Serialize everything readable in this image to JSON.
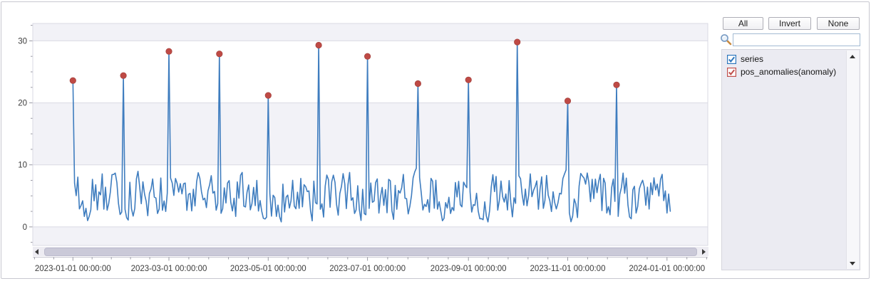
{
  "panel": {
    "buttons": {
      "all": "All",
      "invert": "Invert",
      "none": "None"
    },
    "search": {
      "value": "",
      "placeholder": ""
    },
    "legend_items": [
      {
        "label": "series",
        "color": "#2e77bd",
        "checked": true
      },
      {
        "label": "pos_anomalies(anomaly)",
        "color": "#c0504d",
        "checked": true
      }
    ]
  },
  "chart_data": {
    "type": "line",
    "title": "",
    "xlabel": "",
    "ylabel": "",
    "start_date": "2023-01-01",
    "num_points": 368,
    "ylim": [
      -3,
      32.8
    ],
    "y_ticks": [
      0,
      10,
      20,
      30
    ],
    "y_minor_step": 2.5,
    "x_ticks": [
      {
        "label": "2023-01-01 00:00:00",
        "day": 0
      },
      {
        "label": "2023-03-01 00:00:00",
        "day": 59
      },
      {
        "label": "2023-05-01 00:00:00",
        "day": 120
      },
      {
        "label": "2023-07-01 00:00:00",
        "day": 181
      },
      {
        "label": "2023-09-01 00:00:00",
        "day": 243
      },
      {
        "label": "2023-11-01 00:00:00",
        "day": 304
      },
      {
        "label": "2024-01-01 00:00:00",
        "day": 365
      }
    ],
    "grid": "horizontal-major-only",
    "grid_color": "#d9d9e3",
    "band_color": "#f2f2f7",
    "bands": [
      [
        32.8,
        30
      ],
      [
        20,
        10
      ],
      [
        0,
        -3
      ]
    ],
    "tick_label_color": "#3c3c3c",
    "series": [
      {
        "name": "series",
        "color": "#3f7dbf",
        "baseline": {
          "min": 0.3,
          "max": 9.7,
          "seed": 77,
          "smooth": 0.25
        }
      },
      {
        "name": "pos_anomalies(anomaly)",
        "color": "#bf4a45",
        "marker": "circle"
      }
    ],
    "anomalies": [
      {
        "date": "2023-01-01",
        "value": 23.6
      },
      {
        "date": "2023-02-01",
        "value": 24.4
      },
      {
        "date": "2023-03-01",
        "value": 28.3
      },
      {
        "date": "2023-04-01",
        "value": 27.9
      },
      {
        "date": "2023-05-01",
        "value": 21.2
      },
      {
        "date": "2023-06-01",
        "value": 29.3
      },
      {
        "date": "2023-07-01",
        "value": 27.5
      },
      {
        "date": "2023-08-01",
        "value": 23.1
      },
      {
        "date": "2023-09-01",
        "value": 23.7
      },
      {
        "date": "2023-10-01",
        "value": 29.8
      },
      {
        "date": "2023-11-01",
        "value": 20.3
      },
      {
        "date": "2023-12-01",
        "value": 22.9
      }
    ],
    "legend_position": "right-panel"
  }
}
